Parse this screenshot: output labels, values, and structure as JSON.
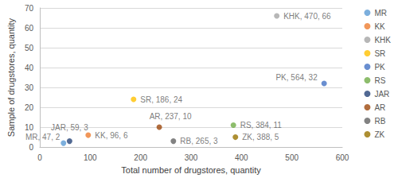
{
  "chart_data": {
    "type": "scatter",
    "x_label": "Total number of drugstores, quantity",
    "y_label": "Sample of drugstores, quantity",
    "xlim": [
      0,
      600
    ],
    "xticks": [
      0,
      100,
      200,
      300,
      400,
      500,
      600
    ],
    "ylim": [
      0,
      70
    ],
    "yticks": [
      0,
      10,
      20,
      30,
      40,
      50,
      60,
      70
    ],
    "grid": true,
    "legend": "right",
    "data_labels": true,
    "marker": "circle",
    "series": [
      {
        "name": "MR",
        "color": "#5b9bd5",
        "x": [
          47
        ],
        "values": [
          2
        ],
        "value_labels": [
          "MR, 47, 2"
        ]
      },
      {
        "name": "KK",
        "color": "#ed7d31",
        "x": [
          96
        ],
        "values": [
          6
        ],
        "value_labels": [
          "KK, 96, 6"
        ]
      },
      {
        "name": "KHK",
        "color": "#a5a5a5",
        "x": [
          470
        ],
        "values": [
          66
        ],
        "value_labels": [
          "KHK, 470, 66"
        ]
      },
      {
        "name": "SR",
        "color": "#ffc000",
        "x": [
          186
        ],
        "values": [
          24
        ],
        "value_labels": [
          "SR, 186, 24"
        ]
      },
      {
        "name": "PK",
        "color": "#4472c4",
        "x": [
          564
        ],
        "values": [
          32
        ],
        "value_labels": [
          "PK, 564, 32"
        ]
      },
      {
        "name": "RS",
        "color": "#70ad47",
        "x": [
          384
        ],
        "values": [
          11
        ],
        "value_labels": [
          "RS, 384, 11"
        ]
      },
      {
        "name": "JAR",
        "color": "#264478",
        "x": [
          59
        ],
        "values": [
          3
        ],
        "value_labels": [
          "JAR, 59, 3"
        ]
      },
      {
        "name": "AR",
        "color": "#9e480e",
        "x": [
          237
        ],
        "values": [
          10
        ],
        "value_labels": [
          "AR, 237, 10"
        ]
      },
      {
        "name": "RB",
        "color": "#636363",
        "x": [
          265
        ],
        "values": [
          3
        ],
        "value_labels": [
          "RB, 265, 3"
        ]
      },
      {
        "name": "ZK",
        "color": "#997300",
        "x": [
          388
        ],
        "values": [
          5
        ],
        "value_labels": [
          "ZK, 388, 5"
        ]
      }
    ]
  }
}
